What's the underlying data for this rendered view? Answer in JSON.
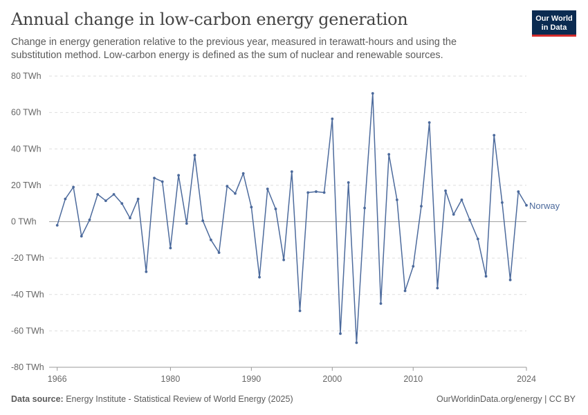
{
  "header": {
    "title": "Annual change in low-carbon energy generation",
    "subtitle": "Change in energy generation relative to the previous year, measured in terawatt-hours and using the substitution method. Low-carbon energy is defined as the sum of nuclear and renewable sources.",
    "logo_line1": "Our World",
    "logo_line2": "in Data"
  },
  "footer": {
    "source_label": "Data source:",
    "source_text": "Energy Institute - Statistical Review of World Energy (2025)",
    "url": "OurWorldinData.org/energy | CC BY"
  },
  "colors": {
    "series": "#4c6a9c",
    "grid": "#dddddd",
    "zero": "#a1a1a1"
  },
  "chart_data": {
    "type": "line",
    "title": "Annual change in low-carbon energy generation",
    "xlabel": "",
    "ylabel": "",
    "ylim": [
      -80,
      80
    ],
    "xlim": [
      1965,
      2024
    ],
    "grid": true,
    "legend": "inline-right",
    "y_ticks": [
      {
        "value": 80,
        "label": "80 TWh"
      },
      {
        "value": 60,
        "label": "60 TWh"
      },
      {
        "value": 40,
        "label": "40 TWh"
      },
      {
        "value": 20,
        "label": "20 TWh"
      },
      {
        "value": 0,
        "label": "0 TWh"
      },
      {
        "value": -20,
        "label": "-20 TWh"
      },
      {
        "value": -40,
        "label": "-40 TWh"
      },
      {
        "value": -60,
        "label": "-60 TWh"
      },
      {
        "value": -80,
        "label": "-80 TWh"
      }
    ],
    "x_ticks": [
      {
        "value": 1966,
        "label": "1966"
      },
      {
        "value": 1980,
        "label": "1980"
      },
      {
        "value": 1990,
        "label": "1990"
      },
      {
        "value": 2000,
        "label": "2000"
      },
      {
        "value": 2010,
        "label": "2010"
      },
      {
        "value": 2024,
        "label": "2024"
      }
    ],
    "series": [
      {
        "name": "Norway",
        "x": [
          1966,
          1967,
          1968,
          1969,
          1970,
          1971,
          1972,
          1973,
          1974,
          1975,
          1976,
          1977,
          1978,
          1979,
          1980,
          1981,
          1982,
          1983,
          1984,
          1985,
          1986,
          1987,
          1988,
          1989,
          1990,
          1991,
          1992,
          1993,
          1994,
          1995,
          1996,
          1997,
          1998,
          1999,
          2000,
          2001,
          2002,
          2003,
          2004,
          2005,
          2006,
          2007,
          2008,
          2009,
          2010,
          2011,
          2012,
          2013,
          2014,
          2015,
          2016,
          2017,
          2018,
          2019,
          2020,
          2021,
          2022,
          2023,
          2024
        ],
        "values": [
          -2,
          12.5,
          19,
          -8,
          1,
          15,
          11.5,
          15,
          10,
          2,
          12.5,
          -27.5,
          24,
          22,
          -14.5,
          25.5,
          -1,
          36.5,
          0.5,
          -10,
          -17,
          19.5,
          15.5,
          26.5,
          8,
          -30.5,
          18,
          7,
          -21,
          27.5,
          -49,
          16,
          16.5,
          16,
          56.5,
          -61.5,
          21.5,
          -66.5,
          7.5,
          70.5,
          -45,
          37,
          12,
          -38,
          -24.5,
          8.5,
          54.5,
          -36.5,
          17,
          4,
          12,
          1,
          -9.5,
          -30,
          47.5,
          10.5,
          -32,
          16.5,
          9
        ]
      }
    ]
  }
}
